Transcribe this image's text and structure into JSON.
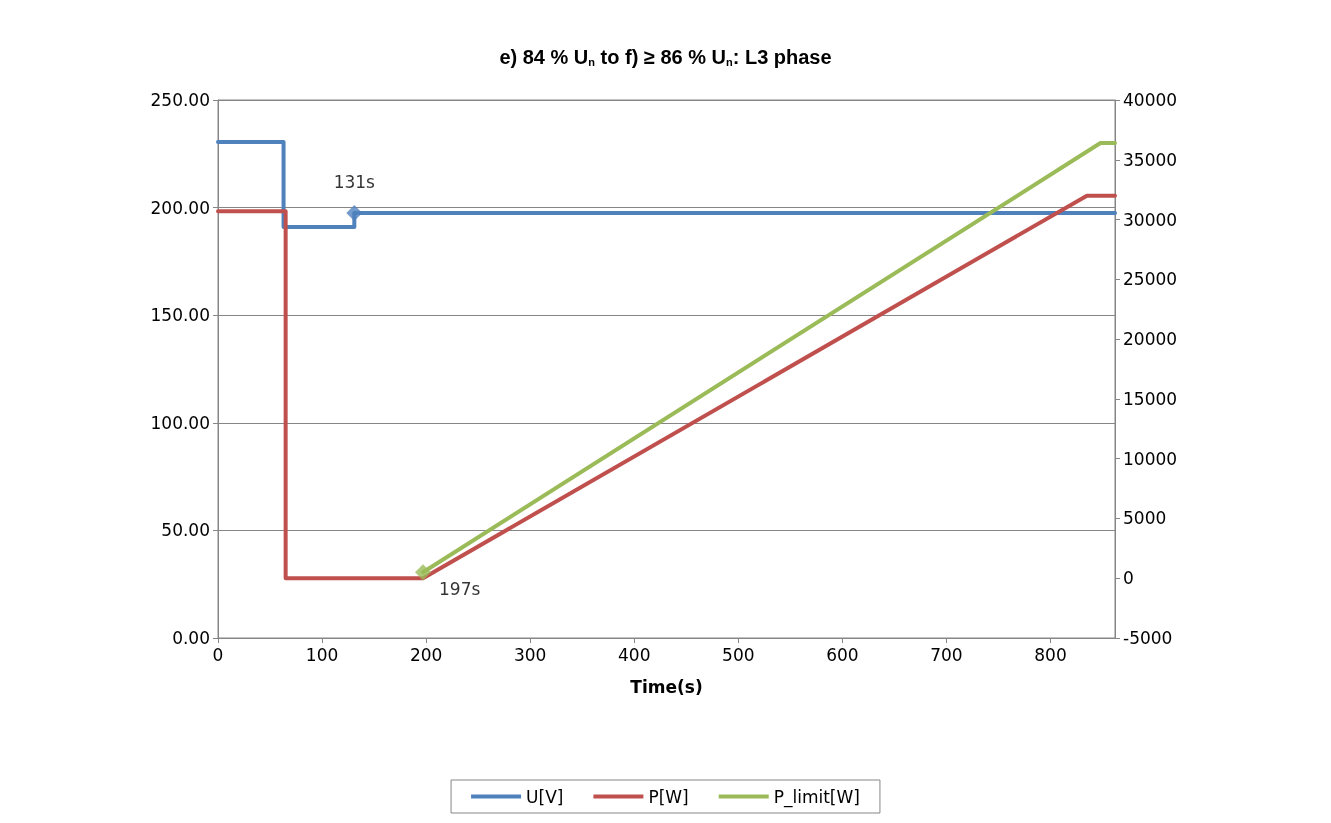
{
  "chart_data": {
    "type": "line",
    "title": "e) 84 % U$_{n}$ to f) ≥ 86 % U$_{n}$: L3 phase",
    "xlabel": "Time(s)",
    "xlim": [
      0,
      862
    ],
    "xticks": [
      0,
      100,
      200,
      300,
      400,
      500,
      600,
      700,
      800
    ],
    "ylim": [
      0,
      250
    ],
    "yticks": [
      {
        "value": 0,
        "label": "0.00"
      },
      {
        "value": 50,
        "label": "50.00"
      },
      {
        "value": 100,
        "label": "100.00"
      },
      {
        "value": 150,
        "label": "150.00"
      },
      {
        "value": 200,
        "label": "200.00"
      },
      {
        "value": 250,
        "label": "250.00"
      }
    ],
    "y2lim": [
      -5000,
      40000
    ],
    "y2ticks": [
      -5000,
      0,
      5000,
      10000,
      15000,
      20000,
      25000,
      30000,
      35000,
      40000
    ],
    "series": [
      {
        "name": "U[V]",
        "color": "#4f81bd",
        "x": [
          0,
          63,
          63,
          131,
          131,
          862
        ],
        "values": [
          230.5,
          230.5,
          191,
          191,
          197.5,
          197.5
        ]
      },
      {
        "name": "P[W]",
        "color": "#c0504d",
        "axis": "y2",
        "x": [
          0,
          65,
          65,
          197,
          835,
          862
        ],
        "values": [
          30700,
          30700,
          0,
          0,
          32000,
          32000
        ]
      },
      {
        "name": "P_limit[W]",
        "color": "#9bbb59",
        "axis": "y2",
        "x": [
          197,
          848,
          862
        ],
        "values": [
          500,
          36400,
          36400
        ]
      }
    ],
    "annotations": [
      {
        "text": "131s",
        "x": 131,
        "y": 197.5
      },
      {
        "text": "197s",
        "x": 197,
        "y": 30.5
      }
    ],
    "grid": "y",
    "legend": "bottom",
    "marker": "none",
    "line_style": "solid"
  }
}
